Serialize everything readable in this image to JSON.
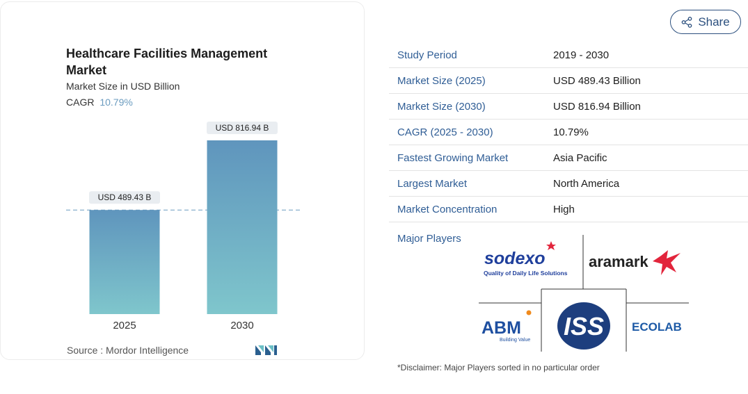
{
  "card": {
    "title": "Healthcare Facilities Management Market",
    "subtitle": "Market Size in USD Billion",
    "cagr_label": "CAGR",
    "cagr_value": "10.79%",
    "source": "Source :  Mordor Intelligence"
  },
  "chart_data": {
    "type": "bar",
    "title": "Healthcare Facilities Management Market",
    "subtitle": "Market Size in USD Billion",
    "categories": [
      "2025",
      "2030"
    ],
    "values": [
      489.43,
      816.94
    ],
    "data_labels": [
      "USD 489.43 B",
      "USD 816.94 B"
    ],
    "ylabel": "",
    "xlabel": "",
    "grid": false,
    "colors": [
      "#5f95bd",
      "#7fc6cc"
    ],
    "reference_line_value": 489.43
  },
  "share": {
    "label": "Share"
  },
  "stats": [
    {
      "key": "Study Period",
      "value": "2019 - 2030"
    },
    {
      "key": "Market Size (2025)",
      "value": "USD 489.43 Billion"
    },
    {
      "key": "Market Size (2030)",
      "value": "USD 816.94 Billion"
    },
    {
      "key": "CAGR (2025 - 2030)",
      "value": "10.79%"
    },
    {
      "key": "Fastest Growing Market",
      "value": "Asia Pacific"
    },
    {
      "key": "Largest Market",
      "value": "North America"
    },
    {
      "key": "Market Concentration",
      "value": "High"
    }
  ],
  "major_players": {
    "label": "Major Players",
    "logos": [
      {
        "name": "sodexo",
        "text": "sodexo",
        "tagline": "Quality of Daily Life Solutions"
      },
      {
        "name": "aramark",
        "text": "aramark"
      },
      {
        "name": "abm",
        "text": "ABM",
        "tagline": "Building Value"
      },
      {
        "name": "iss",
        "text": "ISS"
      },
      {
        "name": "ecolab",
        "text": "ECOLAB"
      }
    ]
  },
  "disclaimer": "*Disclaimer: Major Players sorted in no particular order",
  "colors": {
    "accent": "#2f5d95",
    "cagr": "#6a9bbf"
  }
}
